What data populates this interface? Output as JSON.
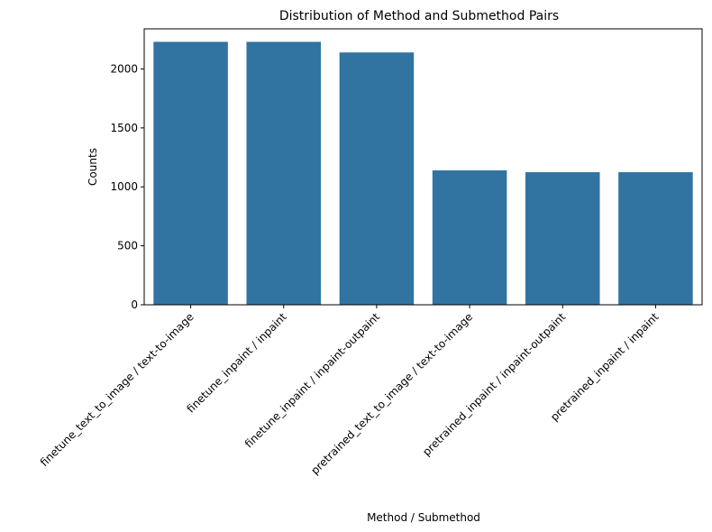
{
  "chart_data": {
    "type": "bar",
    "title": "Distribution of Method and Submethod Pairs",
    "xlabel": "Method / Submethod",
    "ylabel": "Counts",
    "categories": [
      "finetune_text_to_image / text-to-image",
      "finetune_inpaint / inpaint",
      "finetune_inpaint / inpaint-outpaint",
      "pretrained_text_to_image / text-to-image",
      "pretrained_inpaint / inpaint-outpaint",
      "pretrained_inpaint / inpaint"
    ],
    "values": [
      2230,
      2230,
      2140,
      1140,
      1125,
      1125
    ],
    "ylim": [
      0,
      2340
    ],
    "yticks": [
      0,
      500,
      1000,
      1500,
      2000
    ],
    "bar_color": "#3274a1",
    "grid": false,
    "legend": "none"
  }
}
